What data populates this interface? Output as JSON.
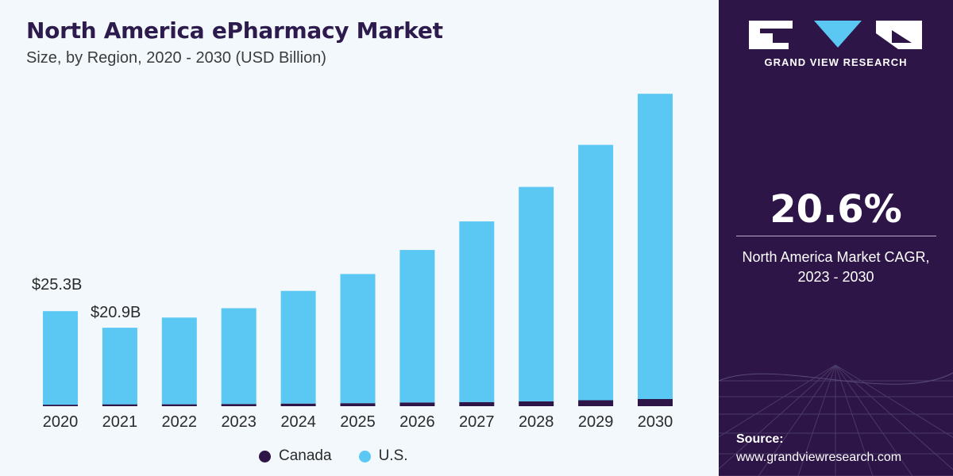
{
  "chart_data": {
    "type": "bar",
    "stacked": true,
    "title": "North America ePharmacy Market",
    "subtitle": "Size, by Region, 2020 - 2030 (USD Billion)",
    "categories": [
      "2020",
      "2021",
      "2022",
      "2023",
      "2024",
      "2025",
      "2026",
      "2027",
      "2028",
      "2029",
      "2030"
    ],
    "series": [
      {
        "name": "Canada",
        "color": "#2d1548",
        "values": [
          0.4,
          0.5,
          0.5,
          0.6,
          0.7,
          0.8,
          1.0,
          1.1,
          1.3,
          1.6,
          1.9
        ]
      },
      {
        "name": "U.S.",
        "color": "#5bc8f4",
        "values": [
          24.9,
          20.4,
          23.1,
          25.5,
          30.0,
          34.4,
          40.6,
          48.1,
          57.1,
          68.0,
          81.3
        ]
      }
    ],
    "data_labels": [
      {
        "category": "2020",
        "text": "$25.3B"
      },
      {
        "category": "2021",
        "text": "$20.9B"
      }
    ],
    "ylim": [
      0,
      90
    ],
    "legend_position": "bottom",
    "grid": false
  },
  "legend": {
    "items": [
      {
        "label": "Canada",
        "color": "#2d1548"
      },
      {
        "label": "U.S.",
        "color": "#5bc8f4"
      }
    ]
  },
  "sidebar": {
    "brand": "GRAND VIEW RESEARCH",
    "cagr_value": "20.6%",
    "cagr_label": "North America Market CAGR,\n2023 - 2030",
    "source_label": "Source:",
    "source_url": "www.grandviewresearch.com"
  }
}
